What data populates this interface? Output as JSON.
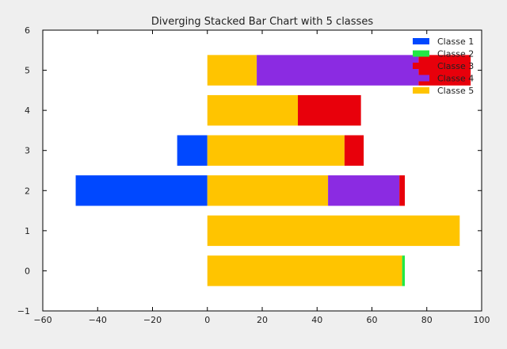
{
  "chart_data": {
    "type": "bar",
    "orientation": "horizontal",
    "stacking": "diverging",
    "title": "Diverging Stacked Bar Chart with 5 classes",
    "xlabel": "",
    "ylabel": "",
    "xlim": [
      -60,
      100
    ],
    "ylim": [
      -1,
      6
    ],
    "x_ticks": [
      -60,
      -40,
      -20,
      0,
      20,
      40,
      60,
      80,
      100
    ],
    "y_ticks": [
      -1,
      0,
      1,
      2,
      3,
      4,
      5,
      6
    ],
    "x_tick_labels": [
      "−60",
      "−40",
      "−20",
      "0",
      "20",
      "40",
      "60",
      "80",
      "100"
    ],
    "y_tick_labels": [
      "−1",
      "0",
      "1",
      "2",
      "3",
      "4",
      "5",
      "6"
    ],
    "categories": [
      0,
      1,
      2,
      3,
      4,
      5
    ],
    "legend_position": "top-right",
    "grid": false,
    "series": [
      {
        "name": "Classe 1",
        "color": "#0048ff",
        "values": [
          0,
          0,
          -48,
          -11,
          0,
          0
        ]
      },
      {
        "name": "Classe 2",
        "color": "#22e845",
        "values": [
          1,
          0,
          0,
          0,
          0,
          0
        ]
      },
      {
        "name": "Classe 3",
        "color": "#e8000b",
        "values": [
          0,
          0,
          2,
          7,
          23,
          19
        ]
      },
      {
        "name": "Classe 4",
        "color": "#8b2be2",
        "values": [
          0,
          0,
          26,
          0,
          0,
          59
        ]
      },
      {
        "name": "Classe 5",
        "color": "#ffc400",
        "values": [
          71,
          92,
          44,
          50,
          33,
          18
        ]
      }
    ],
    "stack_order_positive": [
      "Classe 5",
      "Classe 4",
      "Classe 2",
      "Classe 3"
    ]
  }
}
